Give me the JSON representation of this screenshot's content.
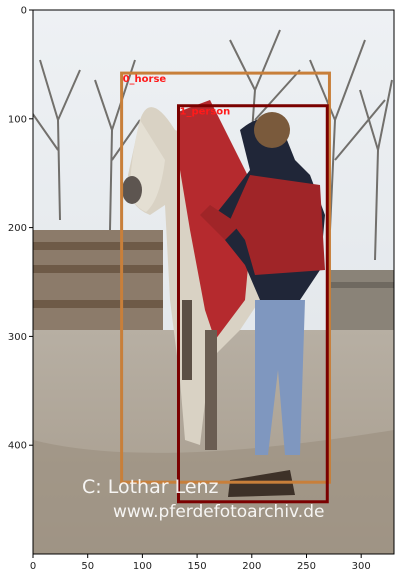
{
  "image": {
    "width_units": 330,
    "height_units": 500,
    "watermark": {
      "credit": "C:  Lothar Lenz",
      "url": "www.pferdefotoarchiv.de"
    }
  },
  "axes": {
    "x_ticks": [
      0,
      50,
      100,
      150,
      200,
      250,
      300
    ],
    "y_ticks": [
      0,
      100,
      200,
      300,
      400
    ]
  },
  "detections": [
    {
      "label": "0_horse",
      "color": "#c87f3a",
      "x0": 81,
      "y0": 58,
      "x1": 271,
      "y1": 434
    },
    {
      "label": "1_person",
      "color": "#7a0000",
      "x0": 133,
      "y0": 88,
      "x1": 269,
      "y1": 452
    }
  ]
}
